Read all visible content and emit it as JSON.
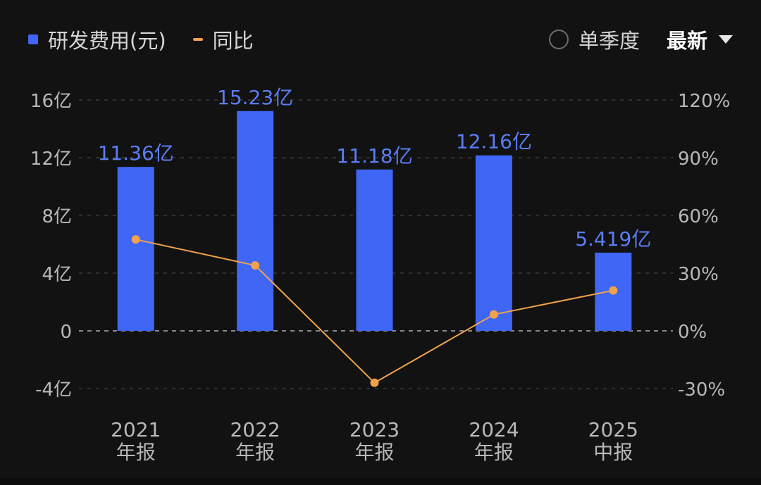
{
  "legend": {
    "bar_label": "研发费用(元)",
    "line_label": "同比"
  },
  "controls": {
    "period_toggle": "单季度",
    "sort_label": "最新"
  },
  "colors": {
    "bar": "#3f66f5",
    "line": "#f0a24c",
    "bar_label": "#5b7df7",
    "axis_text": "#b8b8b8",
    "grid": "#3a3a3a"
  },
  "chart_data": {
    "type": "bar",
    "categories": [
      [
        "2021",
        "年报"
      ],
      [
        "2022",
        "年报"
      ],
      [
        "2023",
        "年报"
      ],
      [
        "2024",
        "年报"
      ],
      [
        "2025",
        "中报"
      ]
    ],
    "series": [
      {
        "name": "研发费用(元)",
        "type": "bar",
        "axis": "left",
        "values": [
          11.36,
          15.23,
          11.18,
          12.16,
          5.419
        ],
        "labels": [
          "11.36亿",
          "15.23亿",
          "11.18亿",
          "12.16亿",
          "5.419亿"
        ]
      },
      {
        "name": "同比",
        "type": "line",
        "axis": "right",
        "values": [
          47.5,
          34,
          -27,
          8.5,
          21
        ]
      }
    ],
    "left_axis": {
      "ticks": [
        -4,
        0,
        4,
        8,
        12,
        16
      ],
      "tick_labels": [
        "-4亿",
        "0",
        "4亿",
        "8亿",
        "12亿",
        "16亿"
      ],
      "range": [
        -4,
        16
      ]
    },
    "right_axis": {
      "ticks": [
        -30,
        0,
        30,
        60,
        90,
        120
      ],
      "tick_labels": [
        "-30%",
        "0%",
        "30%",
        "60%",
        "90%",
        "120%"
      ],
      "range": [
        -30,
        120
      ]
    },
    "grid": true,
    "legend_position": "top-left"
  }
}
